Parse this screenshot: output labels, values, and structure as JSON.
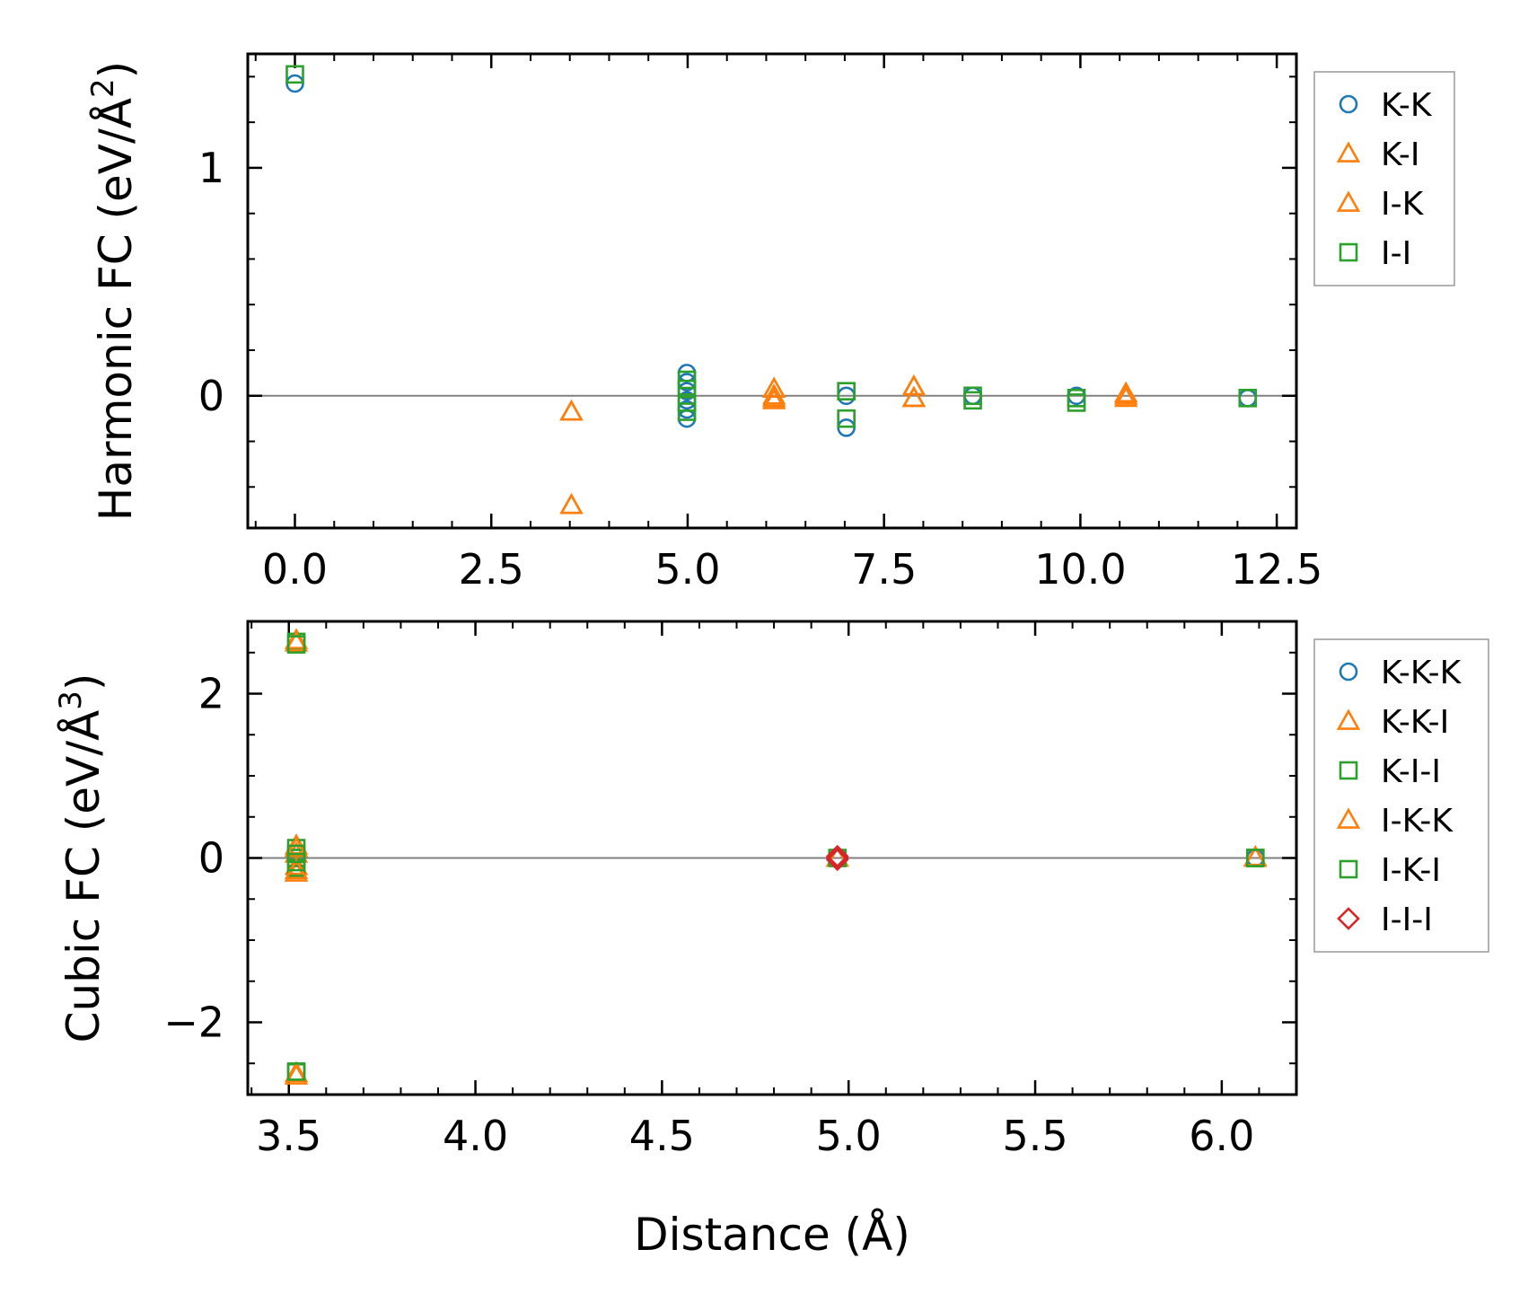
{
  "chart_data": [
    {
      "type": "scatter",
      "ylabel": "Harmonic FC (eV/Å²)",
      "ylabel_main": "Harmonic FC (eV/Å",
      "ylabel_sup": "2",
      "ylabel_end": ")",
      "xlabel": "",
      "xlim": [
        -0.6,
        12.75
      ],
      "ylim": [
        -0.58,
        1.5
      ],
      "xticks": [
        0.0,
        2.5,
        5.0,
        7.5,
        10.0,
        12.5
      ],
      "xtick_labels": [
        "0.0",
        "2.5",
        "5.0",
        "7.5",
        "10.0",
        "12.5"
      ],
      "yticks": [
        0,
        1
      ],
      "ytick_labels": [
        "0",
        "1"
      ],
      "x_minor_step": 0.5,
      "y_minor_step": 0.2,
      "zero_line": true,
      "legend_position": "outside-right-top",
      "series": [
        {
          "name": "K-K",
          "marker": "circle",
          "color": "#1f77b4",
          "points": [
            [
              0.0,
              1.37
            ],
            [
              4.99,
              0.1
            ],
            [
              4.99,
              0.06
            ],
            [
              4.99,
              0.02
            ],
            [
              4.99,
              -0.02
            ],
            [
              4.99,
              -0.06
            ],
            [
              4.99,
              -0.1
            ],
            [
              7.02,
              0.0
            ],
            [
              7.02,
              -0.14
            ],
            [
              8.63,
              0.0
            ],
            [
              9.95,
              0.0
            ],
            [
              12.13,
              -0.01
            ]
          ]
        },
        {
          "name": "K-I",
          "marker": "triangle",
          "color": "#ff7f0e",
          "points": [
            [
              3.52,
              -0.07
            ],
            [
              3.52,
              -0.48
            ],
            [
              6.1,
              0.03
            ],
            [
              6.1,
              0.0
            ],
            [
              6.1,
              -0.02
            ],
            [
              7.88,
              0.04
            ],
            [
              7.88,
              -0.01
            ],
            [
              10.58,
              0.01
            ],
            [
              10.58,
              -0.01
            ]
          ]
        },
        {
          "name": "I-K",
          "marker": "triangle",
          "color": "#ff7f0e",
          "points": [
            [
              3.52,
              -0.07
            ],
            [
              3.52,
              -0.48
            ],
            [
              6.1,
              0.03
            ],
            [
              6.1,
              -0.01
            ],
            [
              7.88,
              0.04
            ],
            [
              7.88,
              -0.01
            ],
            [
              10.58,
              0.0
            ]
          ]
        },
        {
          "name": "I-I",
          "marker": "square",
          "color": "#2ca02c",
          "points": [
            [
              0.0,
              1.41
            ],
            [
              4.99,
              0.07
            ],
            [
              4.99,
              0.03
            ],
            [
              4.99,
              -0.03
            ],
            [
              4.99,
              -0.07
            ],
            [
              7.02,
              0.02
            ],
            [
              7.02,
              -0.1
            ],
            [
              8.63,
              0.0
            ],
            [
              8.63,
              -0.02
            ],
            [
              9.95,
              -0.01
            ],
            [
              9.95,
              -0.03
            ],
            [
              12.13,
              -0.01
            ]
          ]
        }
      ]
    },
    {
      "type": "scatter",
      "ylabel": "Cubic FC (eV/Å³)",
      "ylabel_main": "Cubic FC (eV/Å",
      "ylabel_sup": "3",
      "ylabel_end": ")",
      "xlabel": "Distance (Å)",
      "xlim": [
        3.39,
        6.2
      ],
      "ylim": [
        -2.88,
        2.88
      ],
      "xticks": [
        3.5,
        4.0,
        4.5,
        5.0,
        5.5,
        6.0
      ],
      "xtick_labels": [
        "3.5",
        "4.0",
        "4.5",
        "5.0",
        "5.5",
        "6.0"
      ],
      "yticks": [
        -2,
        0,
        2
      ],
      "ytick_labels": [
        "−2",
        "0",
        "2"
      ],
      "x_minor_step": 0.1,
      "y_minor_step": 0.5,
      "zero_line": true,
      "legend_position": "outside-right-top",
      "series": [
        {
          "name": "K-K-K",
          "marker": "circle",
          "color": "#1f77b4",
          "points": [
            [
              4.97,
              0.0
            ],
            [
              6.09,
              0.0
            ]
          ]
        },
        {
          "name": "K-K-I",
          "marker": "triangle",
          "color": "#ff7f0e",
          "points": [
            [
              3.52,
              2.65
            ],
            [
              3.52,
              0.15
            ],
            [
              3.52,
              0.05
            ],
            [
              3.52,
              -0.1
            ],
            [
              3.52,
              -0.18
            ],
            [
              3.52,
              -2.65
            ],
            [
              4.97,
              0.0
            ],
            [
              6.09,
              0.01
            ]
          ]
        },
        {
          "name": "K-I-I",
          "marker": "square",
          "color": "#2ca02c",
          "points": [
            [
              3.52,
              2.63
            ],
            [
              3.52,
              0.12
            ],
            [
              3.52,
              0.0
            ],
            [
              3.52,
              -0.12
            ],
            [
              3.52,
              -2.61
            ],
            [
              4.97,
              0.0
            ],
            [
              6.09,
              0.0
            ]
          ]
        },
        {
          "name": "I-K-K",
          "marker": "triangle",
          "color": "#ff7f0e",
          "points": [
            [
              3.52,
              2.62
            ],
            [
              3.52,
              0.12
            ],
            [
              3.52,
              -0.15
            ],
            [
              3.52,
              -2.62
            ],
            [
              6.09,
              0.0
            ]
          ]
        },
        {
          "name": "I-K-I",
          "marker": "square",
          "color": "#2ca02c",
          "points": [
            [
              3.52,
              2.6
            ],
            [
              3.52,
              0.05
            ],
            [
              3.52,
              -0.05
            ],
            [
              3.52,
              -2.6
            ],
            [
              6.09,
              0.0
            ]
          ]
        },
        {
          "name": "I-I-I",
          "marker": "diamond",
          "color": "#d62728",
          "points": [
            [
              4.97,
              0.0
            ],
            [
              4.97,
              0.02
            ],
            [
              4.97,
              -0.02
            ]
          ]
        }
      ]
    }
  ]
}
